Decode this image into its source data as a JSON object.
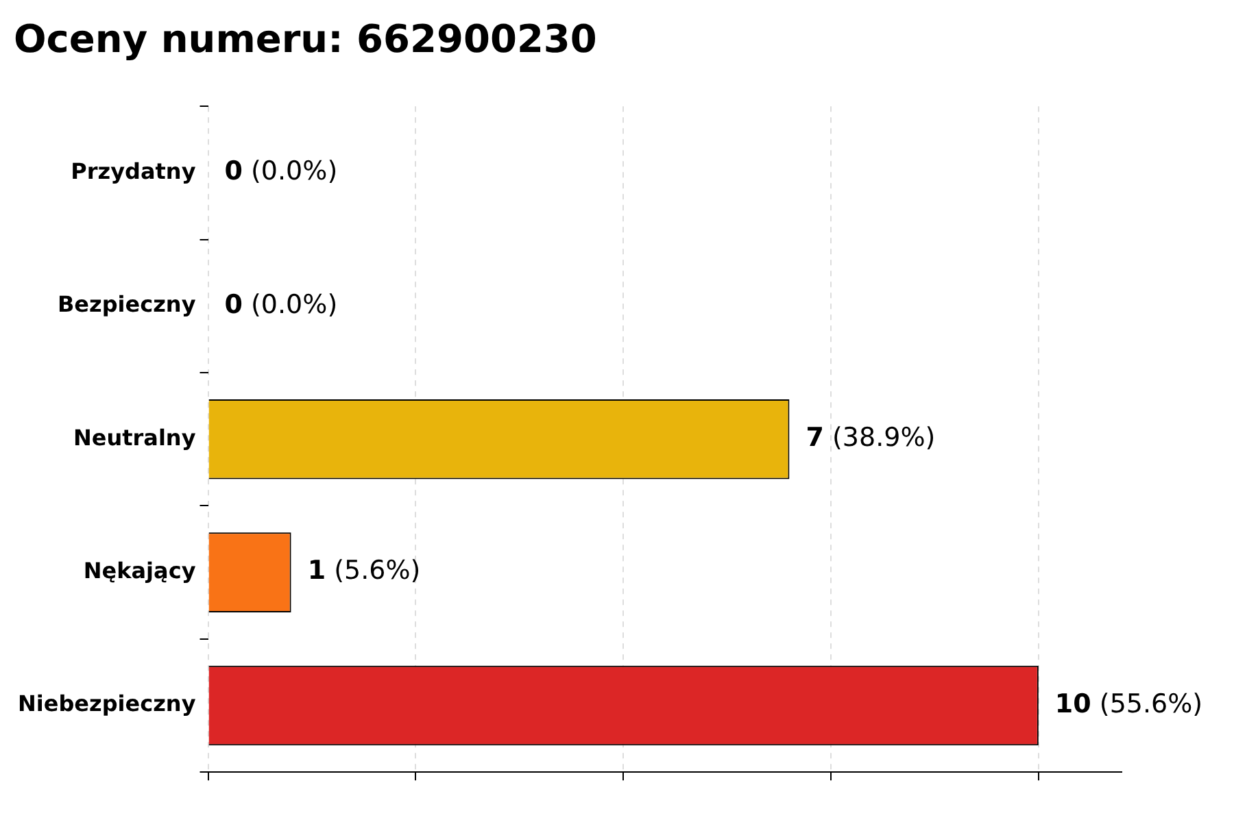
{
  "chart_data": {
    "type": "bar",
    "orientation": "horizontal",
    "title": "Oceny numeru: 662900230",
    "categories": [
      "Przydatny",
      "Bezpieczny",
      "Neutralny",
      "Nękający",
      "Niebezpieczny"
    ],
    "values": [
      0,
      0,
      7,
      1,
      10
    ],
    "colors": [
      "#22c55e",
      "#3b82f6",
      "#e8b40c",
      "#f97316",
      "#dc2626"
    ],
    "value_labels": [
      "0 (0.0%)",
      "0 (0.0%)",
      "7 (38.9%)",
      "1 (5.6%)",
      "10 (55.6%)"
    ],
    "xlim": [
      0,
      11
    ],
    "xticks": [
      {
        "value": 0,
        "label": null
      },
      {
        "value": 2.5,
        "label": null
      },
      {
        "value": 5,
        "label": null
      },
      {
        "value": 7.5,
        "label": null
      },
      {
        "value": 10,
        "label": null
      }
    ],
    "grid": "x",
    "legend": false
  }
}
